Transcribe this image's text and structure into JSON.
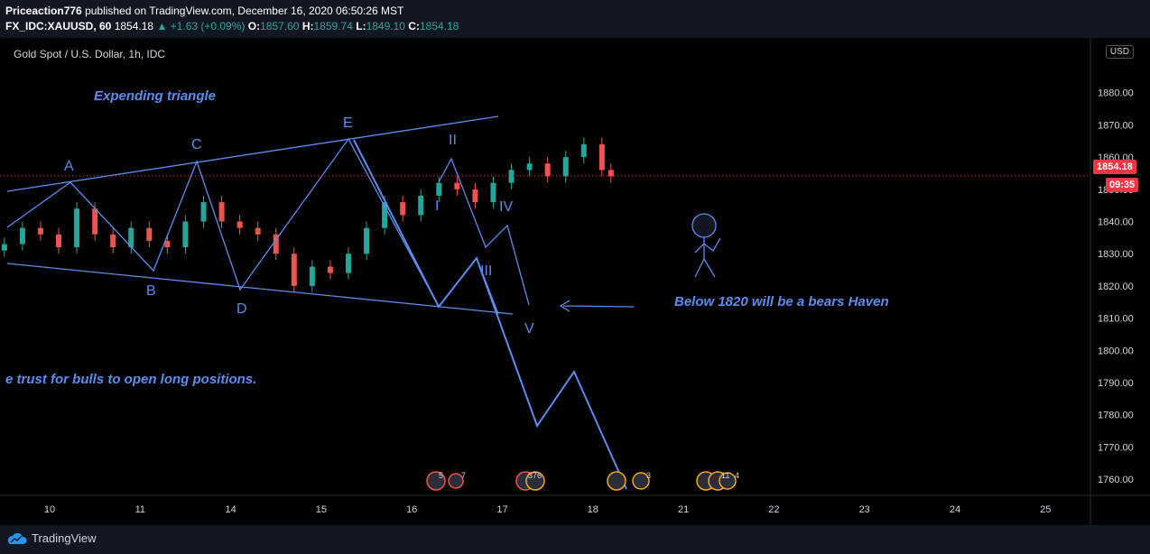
{
  "header": {
    "publisher": "Priceaction776",
    "published_text": "published on TradingView.com, December 16, 2020 06:50:26 MST",
    "symbol": "FX_IDC:XAUUSD, 60",
    "last": "1854.18",
    "change": "+1.63 (+0.09%)",
    "open_label": "O:",
    "open": "1857.60",
    "high_label": "H:",
    "high": "1859.74",
    "low_label": "L:",
    "low": "1849.10",
    "close_label": "C:",
    "close": "1854.18"
  },
  "chart_title": "Gold Spot / U.S. Dollar, 1h, IDC",
  "currency_button": "USD",
  "price_label": "1854.18",
  "countdown_label": "09:35",
  "annotations": {
    "pattern": "Expending triangle",
    "bears": "Below 1820 will be a bears Haven",
    "trust": "e trust for bulls to open long positions."
  },
  "wave_labels": [
    "A",
    "B",
    "C",
    "D",
    "E",
    "I",
    "II",
    "III",
    "IV",
    "V"
  ],
  "event_badges": [
    "5",
    "7",
    "376",
    "3",
    "11",
    "4"
  ],
  "footer": {
    "brand": "TradingView"
  },
  "colors": {
    "up": "#26a69a",
    "down": "#ef5350",
    "drawing": "#5b8def",
    "price_line": "#f23645"
  },
  "chart_data": {
    "type": "line",
    "title": "Gold Spot / U.S. Dollar, 1h, IDC",
    "xlabel": "",
    "ylabel": "",
    "categories": [
      "10",
      "11",
      "14",
      "15",
      "16",
      "17",
      "18",
      "21",
      "22",
      "23",
      "24",
      "25"
    ],
    "y_ticks": [
      "1760.00",
      "1770.00",
      "1780.00",
      "1790.00",
      "1800.00",
      "1810.00",
      "1820.00",
      "1830.00",
      "1840.00",
      "1850.00",
      "1860.00",
      "1870.00",
      "1880.00"
    ],
    "ylim": [
      1755,
      1897
    ],
    "current_price": 1854.18,
    "series": [
      {
        "x": [
          9.5,
          9.7,
          9.9,
          10.1,
          10.3,
          10.5,
          10.7,
          10.9,
          11.1,
          11.3,
          11.5,
          11.7,
          11.9,
          12.1,
          12.3,
          12.5,
          12.7,
          12.9,
          13.1,
          13.3,
          13.5,
          13.7,
          13.9,
          14.1,
          14.3,
          14.5,
          14.7,
          14.9,
          15.1,
          15.3,
          15.5,
          15.7,
          15.9,
          16.1,
          16.2
        ],
        "y": [
          1833,
          1838,
          1836,
          1832,
          1844,
          1836,
          1832,
          1838,
          1834,
          1832,
          1840,
          1846,
          1840,
          1838,
          1836,
          1830,
          1820,
          1826,
          1824,
          1830,
          1838,
          1846,
          1842,
          1848,
          1852,
          1850,
          1846,
          1852,
          1856,
          1858,
          1854,
          1860,
          1864,
          1856,
          1854
        ]
      }
    ]
  }
}
